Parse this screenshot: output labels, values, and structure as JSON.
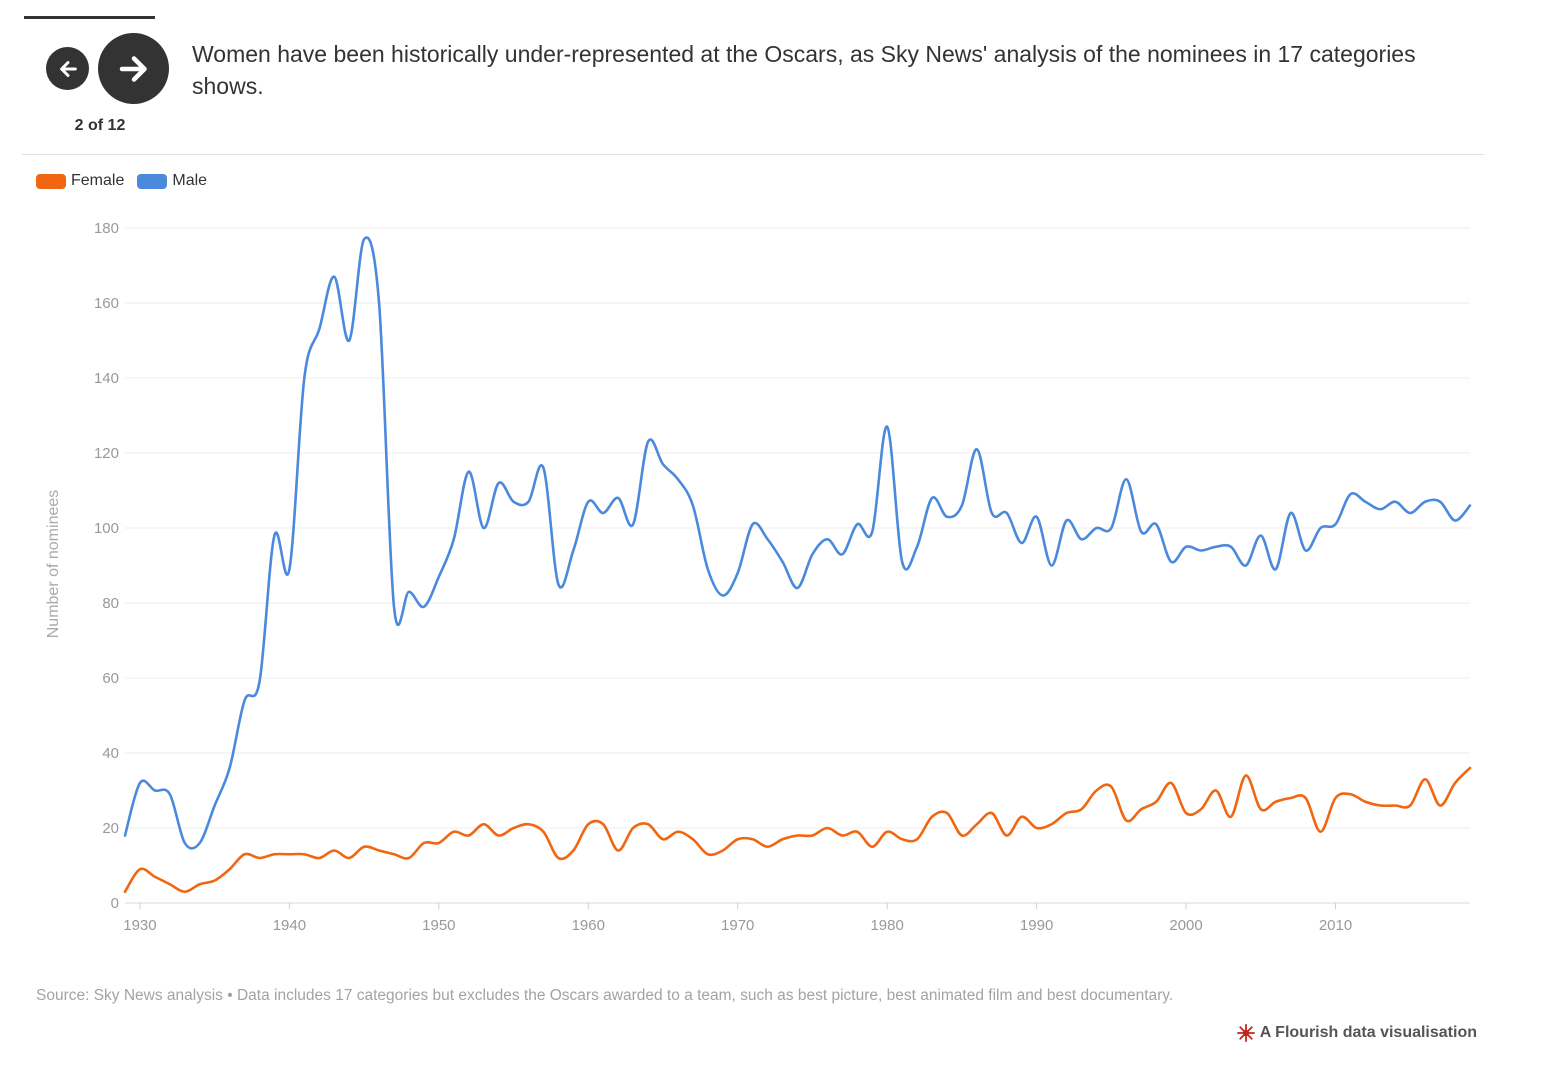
{
  "story": {
    "slide_counter": "2 of 12",
    "caption": "Women have been historically under-represented at the Oscars, as Sky News' analysis of the nominees in 17 categories shows.",
    "prev_icon": "arrow-left-icon",
    "next_icon": "arrow-right-icon"
  },
  "colors": {
    "female": "#f06611",
    "male": "#4a89dc",
    "grid": "#ececec",
    "nav": "#333333"
  },
  "chart_data": {
    "type": "line",
    "title": "",
    "xlabel": "",
    "ylabel": "Number of nominees",
    "xlim": [
      1929,
      2019
    ],
    "ylim": [
      0,
      180
    ],
    "yticks": [
      0,
      20,
      40,
      60,
      80,
      100,
      120,
      140,
      160,
      180
    ],
    "xticks": [
      1930,
      1940,
      1950,
      1960,
      1970,
      1980,
      1990,
      2000,
      2010
    ],
    "grid": true,
    "legend_position": "top-left",
    "x": [
      1929,
      1930,
      1931,
      1932,
      1933,
      1934,
      1935,
      1936,
      1937,
      1938,
      1939,
      1940,
      1941,
      1942,
      1943,
      1944,
      1945,
      1946,
      1947,
      1948,
      1949,
      1950,
      1951,
      1952,
      1953,
      1954,
      1955,
      1956,
      1957,
      1958,
      1959,
      1960,
      1961,
      1962,
      1963,
      1964,
      1965,
      1966,
      1967,
      1968,
      1969,
      1970,
      1971,
      1972,
      1973,
      1974,
      1975,
      1976,
      1977,
      1978,
      1979,
      1980,
      1981,
      1982,
      1983,
      1984,
      1985,
      1986,
      1987,
      1988,
      1989,
      1990,
      1991,
      1992,
      1993,
      1994,
      1995,
      1996,
      1997,
      1998,
      1999,
      2000,
      2001,
      2002,
      2003,
      2004,
      2005,
      2006,
      2007,
      2008,
      2009,
      2010,
      2011,
      2012,
      2013,
      2014,
      2015,
      2016,
      2017,
      2018,
      2019
    ],
    "series": [
      {
        "name": "Female",
        "color": "#f06611",
        "values": [
          3,
          9,
          7,
          5,
          3,
          5,
          6,
          9,
          13,
          12,
          13,
          13,
          13,
          12,
          14,
          12,
          15,
          14,
          13,
          12,
          16,
          16,
          19,
          18,
          21,
          18,
          20,
          21,
          19,
          12,
          14,
          21,
          21,
          14,
          20,
          21,
          17,
          19,
          17,
          13,
          14,
          17,
          17,
          15,
          17,
          18,
          18,
          20,
          18,
          19,
          15,
          19,
          17,
          17,
          23,
          24,
          18,
          21,
          24,
          18,
          23,
          20,
          21,
          24,
          25,
          30,
          31,
          22,
          25,
          27,
          32,
          24,
          25,
          30,
          23,
          34,
          25,
          27,
          28,
          28,
          19,
          28,
          29,
          27,
          26,
          26,
          26,
          33,
          26,
          32,
          36
        ]
      },
      {
        "name": "Male",
        "color": "#4a89dc",
        "values": [
          18,
          32,
          30,
          29,
          16,
          16,
          26,
          36,
          54,
          59,
          98,
          89,
          140,
          153,
          167,
          150,
          177,
          160,
          79,
          83,
          79,
          87,
          97,
          115,
          100,
          112,
          107,
          107,
          116,
          85,
          94,
          107,
          104,
          108,
          101,
          123,
          117,
          113,
          106,
          89,
          82,
          88,
          101,
          97,
          91,
          84,
          93,
          97,
          93,
          101,
          99,
          127,
          91,
          95,
          108,
          103,
          106,
          121,
          104,
          104,
          96,
          103,
          90,
          102,
          97,
          100,
          100,
          113,
          99,
          101,
          91,
          95,
          94,
          95,
          95,
          90,
          98,
          89,
          104,
          94,
          100,
          101,
          109,
          107,
          105,
          107,
          104,
          107,
          107,
          102,
          106
        ]
      }
    ]
  },
  "source": {
    "text": "Source: Sky News analysis • Data includes 17 categories but excludes the Oscars awarded to a team, such as best picture, best animated film and best documentary."
  },
  "credit": {
    "text": "A Flourish data visualisation",
    "icon": "flourish-logo-icon"
  }
}
